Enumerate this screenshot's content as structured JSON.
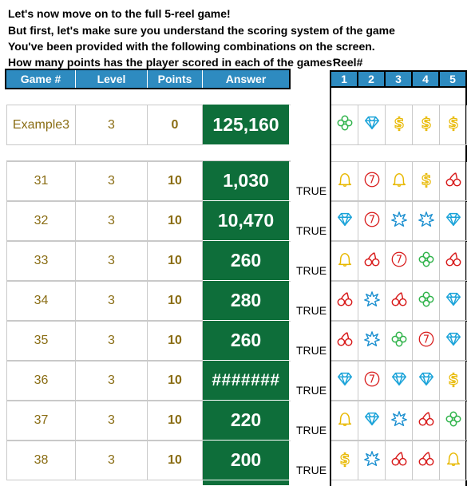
{
  "intro": [
    "Let's now move on to the full 5-reel game!",
    "But first, let's make sure you understand the scoring system of the game",
    "You've been provided with the following combinations on the screen.",
    "How many points has the player scored in each of the games?"
  ],
  "reel_label": "Reel#",
  "headers": {
    "game": "Game #",
    "level": "Level",
    "points": "Points",
    "answer": "Answer"
  },
  "reel_numbers": [
    "1",
    "2",
    "3",
    "4",
    "5"
  ],
  "example": {
    "game": "Example3",
    "level": "3",
    "points": "0",
    "answer": "125,160",
    "symbols": [
      "clover",
      "diamond",
      "dollar",
      "dollar",
      "dollar"
    ]
  },
  "rows": [
    {
      "game": "31",
      "level": "3",
      "points": "10",
      "answer": "1,030",
      "check": "TRUE",
      "symbols": [
        "bell",
        "seven",
        "bell",
        "dollar",
        "cherry"
      ]
    },
    {
      "game": "32",
      "level": "3",
      "points": "10",
      "answer": "10,470",
      "check": "TRUE",
      "symbols": [
        "diamond",
        "seven",
        "star",
        "star",
        "diamond"
      ]
    },
    {
      "game": "33",
      "level": "3",
      "points": "10",
      "answer": "260",
      "check": "TRUE",
      "symbols": [
        "bell",
        "cherry",
        "seven",
        "clover",
        "cherry"
      ]
    },
    {
      "game": "34",
      "level": "3",
      "points": "10",
      "answer": "280",
      "check": "TRUE",
      "symbols": [
        "cherry",
        "star",
        "cherry",
        "clover",
        "diamond"
      ]
    },
    {
      "game": "35",
      "level": "3",
      "points": "10",
      "answer": "260",
      "check": "TRUE",
      "symbols": [
        "cherry",
        "star",
        "clover",
        "seven",
        "diamond"
      ]
    },
    {
      "game": "36",
      "level": "3",
      "points": "10",
      "answer": "#######",
      "check": "TRUE",
      "symbols": [
        "diamond",
        "seven",
        "diamond",
        "diamond",
        "dollar"
      ]
    },
    {
      "game": "37",
      "level": "3",
      "points": "10",
      "answer": "220",
      "check": "TRUE",
      "symbols": [
        "bell",
        "diamond",
        "star",
        "cherry",
        "clover"
      ]
    },
    {
      "game": "38",
      "level": "3",
      "points": "10",
      "answer": "200",
      "check": "TRUE",
      "symbols": [
        "dollar",
        "star",
        "cherry",
        "cherry",
        "bell"
      ]
    }
  ],
  "colors": {
    "header_blue": "#2e8bc0",
    "answer_green": "#0e6e3a",
    "value_gold": "#8a6d14",
    "clover": "#2fb34a",
    "diamond": "#1aa3d9",
    "dollar": "#e8b800",
    "bell": "#e8b800",
    "cherry": "#d81b1b",
    "seven": "#d81b1b",
    "star": "#1a8fd0"
  }
}
